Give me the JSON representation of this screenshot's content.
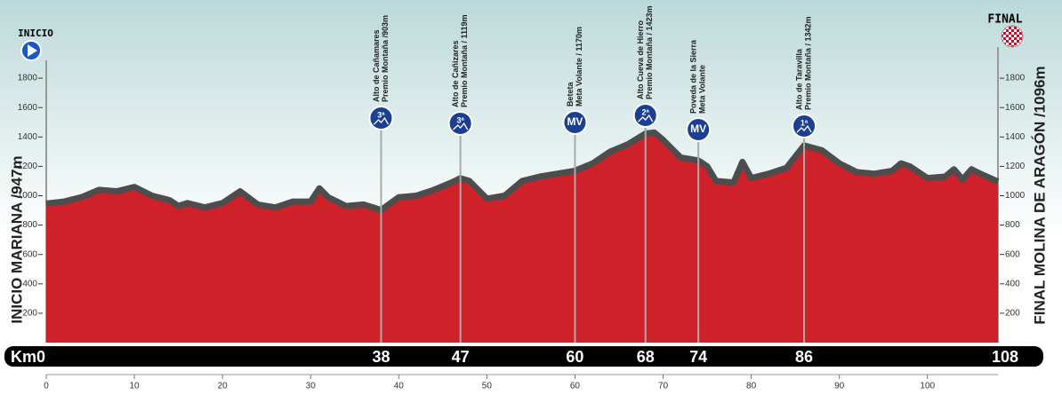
{
  "chart_data": {
    "type": "area",
    "start_label": "INICIO",
    "finish_label": "FINAL",
    "start_name": "INICIO MARIANA /947m",
    "finish_name": "FINAL MOLINA DE ARAGÓN /1096m",
    "x": [
      0,
      2,
      4,
      6,
      8,
      10,
      12,
      14,
      15,
      16,
      18,
      20,
      22,
      24,
      26,
      28,
      30,
      31,
      32,
      34,
      36,
      38,
      40,
      42,
      44,
      46,
      47,
      48,
      50,
      52,
      54,
      56,
      58,
      60,
      62,
      64,
      66,
      68,
      69,
      70,
      72,
      74,
      75,
      76,
      78,
      79,
      80,
      82,
      84,
      86,
      88,
      90,
      92,
      94,
      96,
      97,
      98,
      100,
      102,
      103,
      104,
      105,
      106,
      108
    ],
    "values": [
      947,
      960,
      990,
      1040,
      1030,
      1060,
      1000,
      970,
      930,
      950,
      920,
      950,
      1030,
      940,
      920,
      960,
      960,
      1050,
      990,
      930,
      940,
      903,
      990,
      1000,
      1040,
      1090,
      1119,
      1100,
      980,
      1000,
      1100,
      1130,
      1150,
      1170,
      1220,
      1300,
      1350,
      1423,
      1430,
      1380,
      1260,
      1240,
      1200,
      1100,
      1090,
      1230,
      1120,
      1150,
      1190,
      1342,
      1310,
      1220,
      1160,
      1150,
      1170,
      1220,
      1200,
      1120,
      1130,
      1180,
      1110,
      1180,
      1150,
      1096
    ],
    "color": "#cf2129",
    "xlim": [
      0,
      108
    ],
    "ylim": [
      0,
      2000
    ],
    "xticks": [
      0,
      10,
      20,
      30,
      40,
      50,
      60,
      70,
      80,
      90,
      100
    ],
    "yticks": [
      200,
      400,
      600,
      800,
      1000,
      1200,
      1400,
      1600,
      1800
    ],
    "km_markers": [
      {
        "value": 0,
        "label": "Km0"
      },
      38,
      47,
      60,
      68,
      74,
      86,
      108
    ],
    "passes": [
      {
        "name": "Alto de Cañamares",
        "detail": "Premio Montaña /903m",
        "badge": "3ª"
      },
      {
        "name": "Alto de Cañizares",
        "detail": "Premio Montaña / 1119m",
        "badge": "3ª"
      },
      {
        "name": "Beteta",
        "detail": "Meta Volante / 1170m",
        "badge": "MV"
      },
      {
        "name": "Alto Cueva de Hierro",
        "detail": "Premio Montaña / 1423m",
        "badge": "2ª"
      },
      {
        "name": "Poveda de la Sierra",
        "detail": "Meta Volante",
        "badge": "MV"
      },
      {
        "name": "Alto de Taravilla",
        "detail": "Premio Montaña / 1342m",
        "badge": "1ª"
      }
    ]
  }
}
